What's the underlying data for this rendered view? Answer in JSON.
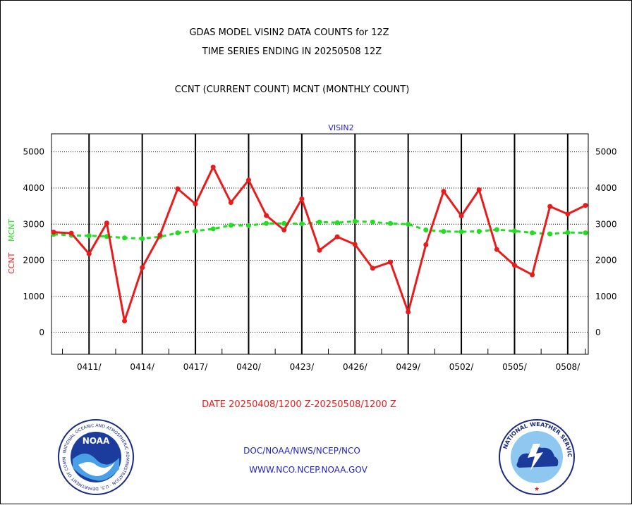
{
  "header": {
    "title_line1": "GDAS MODEL VISIN2 DATA COUNTS for 12Z",
    "title_line2": "TIME SERIES ENDING IN 20250508 12Z",
    "subtitle": "CCNT (CURRENT COUNT) MCNT (MONTHLY COUNT)"
  },
  "footer": {
    "date_range": "DATE 20250408/1200 Z-20250508/1200 Z",
    "org_path": "DOC/NOAA/NWS/NCEP/NCO",
    "website": "WWW.NCO.NCEP.NOAA.GOV"
  },
  "logos": {
    "noaa_text": "NOAA",
    "noaa_ring_text": "NATIONAL OCEANIC AND ATMOSPHERIC ADMINISTRATION · U.S. DEPARTMENT OF COMMERCE",
    "nws_ring_text": "NATIONAL WEATHER SERVICE"
  },
  "colors": {
    "ccnt": "#e81c1c",
    "mcnt": "#22dd22",
    "panel_title": "#2222cc",
    "footer_red": "#e81c1c",
    "footer_blue": "#2222cc"
  },
  "chart_data": {
    "type": "line",
    "title": "VISIN2",
    "ylabel_ccnt": "CCNT",
    "ylabel_mcnt": "MCNT",
    "ylim": [
      -600,
      5500
    ],
    "yticks": [
      0,
      1000,
      2000,
      3000,
      4000,
      5000
    ],
    "ytick_labels": [
      "0",
      "1000",
      "2000",
      "3000",
      "4000",
      "5000"
    ],
    "xlim": [
      0,
      30.2
    ],
    "xticks": [
      2,
      5,
      8,
      11,
      14,
      17,
      20,
      23,
      26,
      29
    ],
    "xtick_labels": [
      "0411/",
      "0414/",
      "0417/",
      "0420/",
      "0423/",
      "0426/",
      "0429/",
      "0502/",
      "0505/",
      "0508/"
    ],
    "minor_xticks": [
      0.5,
      3.5,
      6.5,
      9.5,
      12.5,
      15.5,
      18.5,
      21.5,
      24.5,
      27.5,
      30
    ],
    "grid": true,
    "series": [
      {
        "name": "CCNT",
        "color": "#e81c1c",
        "style": "solid",
        "x": [
          0,
          1,
          2,
          3,
          4,
          5,
          6,
          7,
          8,
          9,
          10,
          11,
          12,
          13,
          14,
          15,
          16,
          17,
          18,
          19,
          20,
          21,
          22,
          23,
          24,
          25,
          26,
          27,
          28,
          29,
          30
        ],
        "values": [
          2780,
          2750,
          2180,
          3030,
          320,
          1800,
          2700,
          3980,
          3560,
          4580,
          3600,
          4220,
          3240,
          2840,
          3700,
          2280,
          2650,
          2440,
          1780,
          1950,
          570,
          2430,
          3910,
          3230,
          3950,
          2300,
          1860,
          1600,
          3490,
          3280,
          3520
        ]
      },
      {
        "name": "MCNT",
        "color": "#22dd22",
        "style": "dashed",
        "x": [
          0,
          1,
          2,
          3,
          4,
          5,
          6,
          7,
          8,
          9,
          10,
          11,
          12,
          13,
          14,
          15,
          16,
          17,
          18,
          19,
          20,
          21,
          22,
          23,
          24,
          25,
          26,
          27,
          28,
          29,
          30
        ],
        "values": [
          2720,
          2690,
          2680,
          2660,
          2620,
          2600,
          2650,
          2760,
          2810,
          2870,
          2970,
          2960,
          3020,
          3020,
          3010,
          3060,
          3040,
          3080,
          3060,
          3020,
          3000,
          2840,
          2800,
          2790,
          2800,
          2850,
          2810,
          2760,
          2730,
          2770,
          2760
        ]
      }
    ]
  }
}
